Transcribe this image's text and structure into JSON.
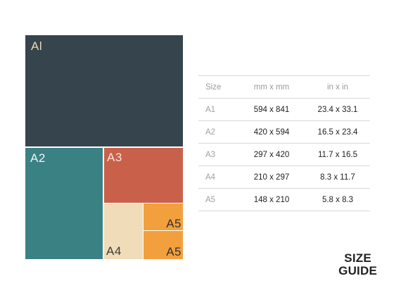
{
  "diagram": {
    "sheets": [
      {
        "id": "a1",
        "label": "Al"
      },
      {
        "id": "a2",
        "label": "A2"
      },
      {
        "id": "a3",
        "label": "A3"
      },
      {
        "id": "a4",
        "label": "A4"
      },
      {
        "id": "a5_top",
        "label": "A5"
      },
      {
        "id": "a5_bottom",
        "label": "A5"
      }
    ],
    "colors": {
      "a1": "#36444d",
      "a2": "#3a8184",
      "a3": "#c9614a",
      "a4": "#f0dcb8",
      "a5": "#f2a03e"
    }
  },
  "table": {
    "headers": [
      "Size",
      "mm x mm",
      "in x in"
    ],
    "rows": [
      [
        "A1",
        "594 x 841",
        "23.4 x 33.1"
      ],
      [
        "A2",
        "420 x 594",
        "16.5 x 23.4"
      ],
      [
        "A3",
        "297 x 420",
        "11.7 x 16.5"
      ],
      [
        "A4",
        "210 x 297",
        "8.3 x 11.7"
      ],
      [
        "A5",
        "148 x 210",
        "5.8 x 8.3"
      ]
    ]
  },
  "title": {
    "line1": "SIZE",
    "line2": "GUIDE"
  }
}
